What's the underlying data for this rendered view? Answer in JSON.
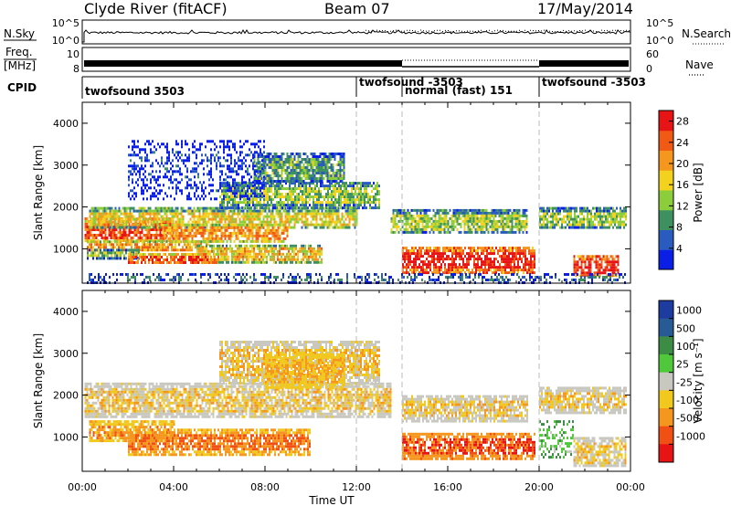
{
  "header": {
    "radar": "Clyde River (fitACF)",
    "beam": "Beam 07",
    "date": "17/May/2014"
  },
  "nsky_panel": {
    "left_label": "N.Sky",
    "left_ticks": [
      "10^5",
      "10^0"
    ],
    "right_ticks": [
      "10^5",
      "10^0"
    ],
    "right_label": "N.Search"
  },
  "freq_panel": {
    "left_label_top": "Freq.",
    "left_label_unit": "[MHz]",
    "left_ticks": [
      "10",
      "8"
    ],
    "right_ticks": [
      "60",
      "0"
    ],
    "right_label": "Nave"
  },
  "cpid_panel": {
    "label": "CPID",
    "segments": [
      {
        "text": "twofsound 3503",
        "start_hour": 0
      },
      {
        "text": "twofsound -3503",
        "start_hour": 12
      },
      {
        "text": "normal (fast) 151",
        "start_hour": 14
      },
      {
        "text": "twofsound -3503",
        "start_hour": 20
      }
    ]
  },
  "chart_data": [
    {
      "type": "heatmap",
      "name": "power",
      "ylabel": "Slant Range [km]",
      "xlabel": "",
      "x_range_hours": [
        0,
        24
      ],
      "y_range_km": [
        180,
        4500
      ],
      "y_ticks": [
        1000,
        2000,
        3000,
        4000
      ],
      "colorbar_label": "Power [dB]",
      "colorbar_ticks": [
        4,
        8,
        12,
        16,
        20,
        24,
        28
      ],
      "colorbar_range": [
        0,
        30
      ],
      "colorbar_colors": [
        "#0a1ee6",
        "#2a5cc0",
        "#3e9060",
        "#8ccd3c",
        "#f2d21e",
        "#f5961e",
        "#f05a14",
        "#e61414"
      ],
      "bands": [
        {
          "x0": 0.1,
          "x1": 4.0,
          "y0": 1200,
          "y1": 1750,
          "level": 0.85
        },
        {
          "x0": 0.2,
          "x1": 5.5,
          "y0": 950,
          "y1": 1200,
          "level": 0.7
        },
        {
          "x0": 0.3,
          "x1": 12.0,
          "y0": 1500,
          "y1": 2000,
          "level": 0.55
        },
        {
          "x0": 0.2,
          "x1": 2.5,
          "y0": 800,
          "y1": 1000,
          "level": 0.4
        },
        {
          "x0": 6.0,
          "x1": 13.0,
          "y0": 2000,
          "y1": 2600,
          "level": 0.45
        },
        {
          "x0": 7.5,
          "x1": 11.5,
          "y0": 2600,
          "y1": 3300,
          "level": 0.35
        },
        {
          "x0": 3.5,
          "x1": 9.0,
          "y0": 1200,
          "y1": 1600,
          "level": 0.7
        },
        {
          "x0": 5.0,
          "x1": 10.5,
          "y0": 700,
          "y1": 1100,
          "level": 0.6
        },
        {
          "x0": 2.0,
          "x1": 6.0,
          "y0": 650,
          "y1": 900,
          "level": 0.8
        },
        {
          "x0": 13.5,
          "x1": 19.5,
          "y0": 1400,
          "y1": 1950,
          "level": 0.45
        },
        {
          "x0": 14.0,
          "x1": 19.8,
          "y0": 450,
          "y1": 1050,
          "level": 0.95
        },
        {
          "x0": 20.0,
          "x1": 23.8,
          "y0": 1500,
          "y1": 2000,
          "level": 0.45
        },
        {
          "x0": 21.5,
          "x1": 23.5,
          "y0": 350,
          "y1": 850,
          "level": 0.95
        },
        {
          "x0": 0.2,
          "x1": 23.8,
          "y0": 200,
          "y1": 420,
          "level": 0.2
        },
        {
          "x0": 2.0,
          "x1": 8.0,
          "y0": 2200,
          "y1": 3600,
          "level": 0.1
        }
      ]
    },
    {
      "type": "heatmap",
      "name": "velocity",
      "ylabel": "Slant Range [km]",
      "xlabel": "Time UT",
      "x_ticks": [
        "00:00",
        "04:00",
        "08:00",
        "12:00",
        "16:00",
        "20:00",
        "00:00"
      ],
      "x_range_hours": [
        0,
        24
      ],
      "y_range_km": [
        180,
        4500
      ],
      "y_ticks": [
        1000,
        2000,
        3000,
        4000
      ],
      "colorbar_label": "Velocity [m s⁻¹]",
      "colorbar_ticks": [
        "1000",
        "500",
        "100",
        "25",
        "-25",
        "-100",
        "-500",
        "-1000"
      ],
      "colorbar_colors": [
        "#1e3ca0",
        "#285a96",
        "#3c8c46",
        "#50c83c",
        "#c8c8c0",
        "#f0c81e",
        "#f5961e",
        "#f05014",
        "#e61414"
      ],
      "bands": [
        {
          "x0": 0.1,
          "x1": 13.5,
          "y0": 1500,
          "y1": 2300,
          "level": 0.5
        },
        {
          "x0": 0.3,
          "x1": 4.0,
          "y0": 900,
          "y1": 1400,
          "level": 0.7
        },
        {
          "x0": 2.0,
          "x1": 10.0,
          "y0": 600,
          "y1": 1200,
          "level": 0.8
        },
        {
          "x0": 6.0,
          "x1": 13.0,
          "y0": 2300,
          "y1": 3300,
          "level": 0.55
        },
        {
          "x0": 8.0,
          "x1": 11.5,
          "y0": 2200,
          "y1": 3000,
          "level": 0.6
        },
        {
          "x0": 14.0,
          "x1": 19.5,
          "y0": 1400,
          "y1": 2000,
          "level": 0.5
        },
        {
          "x0": 14.0,
          "x1": 19.8,
          "y0": 500,
          "y1": 1100,
          "level": 0.92
        },
        {
          "x0": 20.0,
          "x1": 23.8,
          "y0": 1600,
          "y1": 2200,
          "level": 0.5
        },
        {
          "x0": 20.0,
          "x1": 21.5,
          "y0": 500,
          "y1": 1400,
          "level": 0.25
        },
        {
          "x0": 21.5,
          "x1": 23.8,
          "y0": 300,
          "y1": 1000,
          "level": 0.5
        }
      ]
    }
  ]
}
